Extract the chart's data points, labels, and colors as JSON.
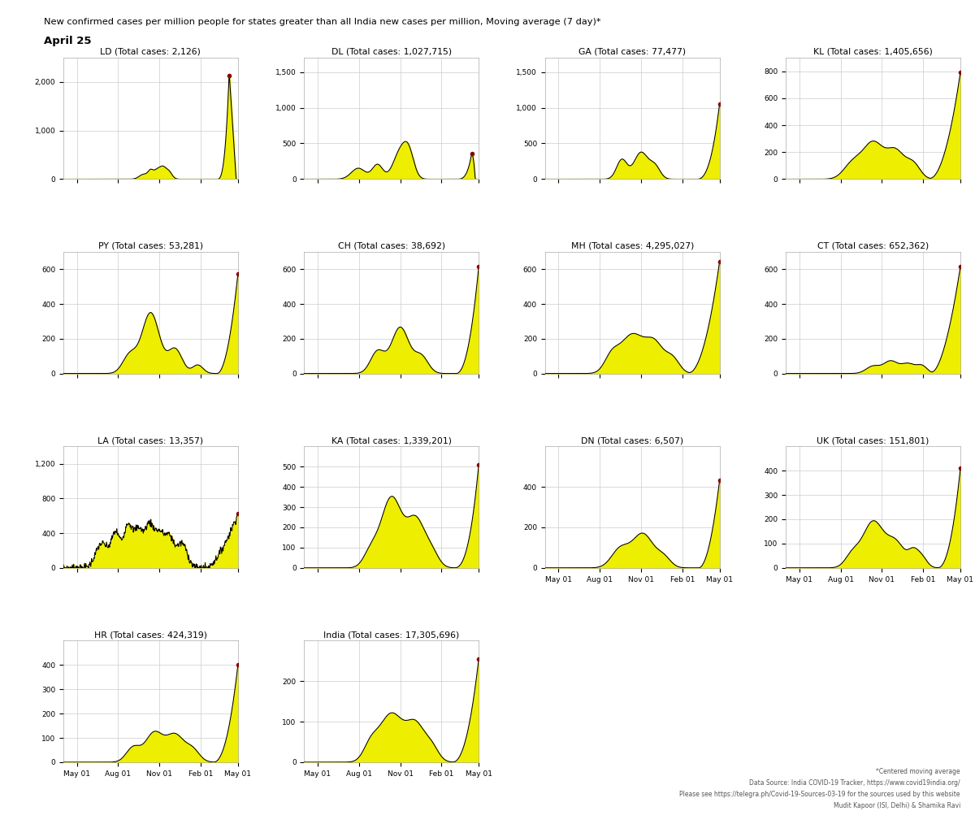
{
  "title_line1": "New confirmed cases per million people for states greater than all India new cases per million, Moving average (7 day)*",
  "title_line2": "April 25",
  "footer_lines": [
    "*Centered moving average",
    "Data Source: India COVID-19 Tracker, https://www.covid19india.org/",
    "Please see https://telegra.ph/Covid-19-Sources-03-19 for the sources used by this website",
    "Mudit Kapoor (ISI, Delhi) & Shamika Ravi"
  ],
  "subplots": [
    {
      "code": "LD",
      "total": "2,126",
      "ylim": [
        0,
        2500
      ],
      "yticks": [
        0,
        1000,
        2000
      ],
      "shape": "LD"
    },
    {
      "code": "DL",
      "total": "1,027,715",
      "ylim": [
        0,
        1700
      ],
      "yticks": [
        0,
        500,
        1000,
        1500
      ],
      "shape": "DL"
    },
    {
      "code": "GA",
      "total": "77,477",
      "ylim": [
        0,
        1700
      ],
      "yticks": [
        0,
        500,
        1000,
        1500
      ],
      "shape": "GA"
    },
    {
      "code": "KL",
      "total": "1,405,656",
      "ylim": [
        0,
        900
      ],
      "yticks": [
        0,
        200,
        400,
        600,
        800
      ],
      "shape": "KL"
    },
    {
      "code": "PY",
      "total": "53,281",
      "ylim": [
        0,
        700
      ],
      "yticks": [
        0,
        200,
        400,
        600
      ],
      "shape": "PY"
    },
    {
      "code": "CH",
      "total": "38,692",
      "ylim": [
        0,
        700
      ],
      "yticks": [
        0,
        200,
        400,
        600
      ],
      "shape": "CH"
    },
    {
      "code": "MH",
      "total": "4,295,027",
      "ylim": [
        0,
        700
      ],
      "yticks": [
        0,
        200,
        400,
        600
      ],
      "shape": "MH"
    },
    {
      "code": "CT",
      "total": "652,362",
      "ylim": [
        0,
        700
      ],
      "yticks": [
        0,
        200,
        400,
        600
      ],
      "shape": "CT"
    },
    {
      "code": "LA",
      "total": "13,357",
      "ylim": [
        0,
        1400
      ],
      "yticks": [
        0,
        400,
        800,
        1200
      ],
      "shape": "LA"
    },
    {
      "code": "KA",
      "total": "1,339,201",
      "ylim": [
        0,
        600
      ],
      "yticks": [
        0,
        100,
        200,
        300,
        400,
        500
      ],
      "shape": "KA"
    },
    {
      "code": "DN",
      "total": "6,507",
      "ylim": [
        0,
        600
      ],
      "yticks": [
        0,
        200,
        400
      ],
      "shape": "DN"
    },
    {
      "code": "UK",
      "total": "151,801",
      "ylim": [
        0,
        500
      ],
      "yticks": [
        0,
        100,
        200,
        300,
        400
      ],
      "shape": "UK"
    },
    {
      "code": "HR",
      "total": "424,319",
      "ylim": [
        0,
        500
      ],
      "yticks": [
        0,
        100,
        200,
        300,
        400
      ],
      "shape": "HR"
    },
    {
      "code": "India",
      "total": "17,305,696",
      "ylim": [
        0,
        300
      ],
      "yticks": [
        0,
        100,
        200
      ],
      "shape": "India"
    }
  ],
  "fill_color": "#eeee00",
  "line_color": "#000000",
  "dot_color": "#8B0000",
  "bg_color": "#ffffff",
  "grid_color": "#cccccc",
  "x_ticks": [
    "May 01",
    "Aug 01",
    "Nov 01",
    "Feb 01",
    "May 01"
  ]
}
